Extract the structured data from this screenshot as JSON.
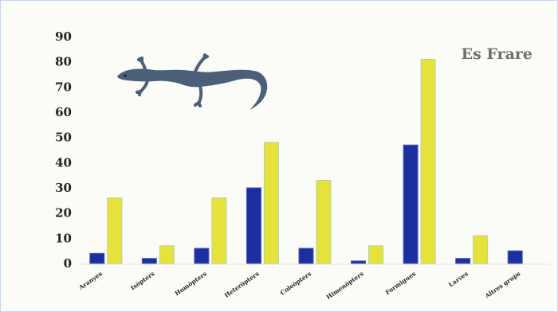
{
  "chart_data": {
    "type": "bar",
    "title": "Es Frare",
    "categories": [
      "Aranyes",
      "Isòpters",
      "Homòpters",
      "Heteròpters",
      "Coleòpters",
      "Himenòpters",
      "Formigues",
      "Larves",
      "Altres grups"
    ],
    "series": [
      {
        "values": [
          4,
          2,
          6,
          30,
          6,
          1,
          47,
          2,
          5
        ],
        "color": "#1c2fa0"
      },
      {
        "values": [
          26,
          7,
          26,
          48,
          33,
          7,
          81,
          11,
          0
        ],
        "color": "#e6e23c"
      }
    ],
    "ylim": [
      0,
      90
    ],
    "yticks": [
      0,
      10,
      20,
      30,
      40,
      50,
      60,
      70,
      80,
      90
    ],
    "grid": false,
    "xlabel": "",
    "ylabel": ""
  },
  "image": {
    "icon": "lizard-icon"
  }
}
